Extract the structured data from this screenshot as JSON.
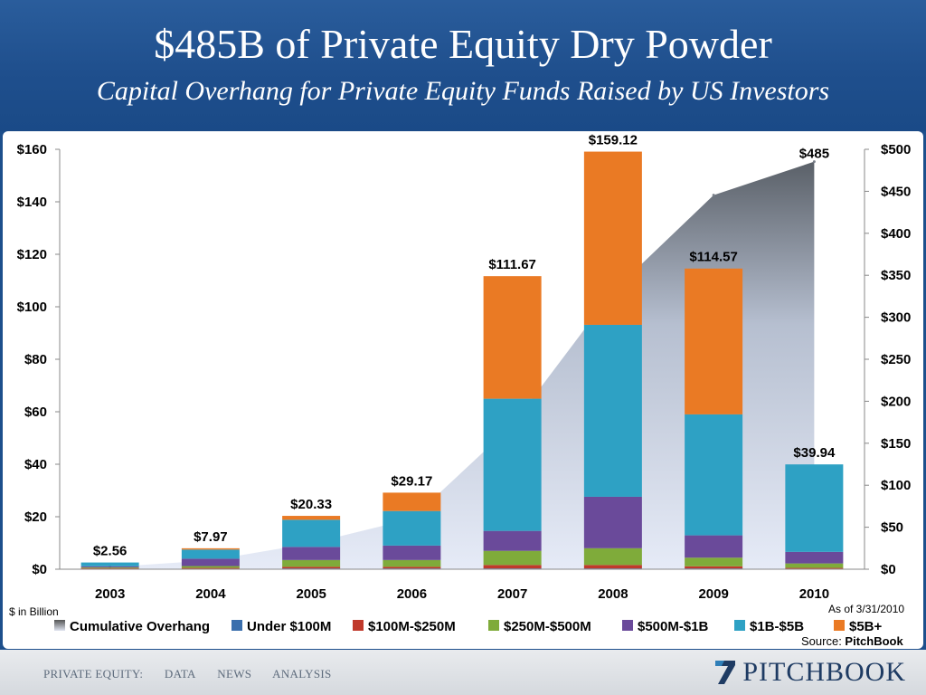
{
  "header": {
    "title": "$485B of Private Equity Dry Powder",
    "subtitle": "Capital Overhang for Private Equity Funds Raised by US Investors"
  },
  "notes": {
    "units": "$ in Billion",
    "as_of": "As of 3/31/2010",
    "source_prefix": "Source: ",
    "source_name": "PitchBook"
  },
  "footer": {
    "nav": [
      "PRIVATE EQUITY:",
      "DATA",
      "NEWS",
      "ANALYSIS"
    ],
    "brand": "PITCHBOOK",
    "brand_mark": "7"
  },
  "chart_data": {
    "type": "bar",
    "stacked": true,
    "categories": [
      "2003",
      "2004",
      "2005",
      "2006",
      "2007",
      "2008",
      "2009",
      "2010"
    ],
    "series": [
      {
        "name": "Under $100M",
        "color": "#3a6fad",
        "values": [
          0.2,
          0.2,
          0.3,
          0.3,
          0.3,
          0.3,
          0.3,
          0.2
        ]
      },
      {
        "name": "$100M-$250M",
        "color": "#c0392b",
        "values": [
          0.2,
          0.3,
          0.6,
          0.6,
          1.3,
          1.3,
          0.8,
          0.3
        ]
      },
      {
        "name": "$250M-$500M",
        "color": "#7fab3a",
        "values": [
          0.3,
          0.7,
          2.6,
          2.6,
          5.4,
          6.4,
          3.3,
          1.7
        ]
      },
      {
        "name": "$500M-$1B",
        "color": "#6a4a9a",
        "values": [
          0.4,
          2.8,
          5.0,
          5.5,
          7.6,
          19.6,
          8.5,
          4.4
        ]
      },
      {
        "name": "$1B-$5B",
        "color": "#2ea1c4",
        "values": [
          1.46,
          3.47,
          10.33,
          13.17,
          50.37,
          65.52,
          46.1,
          33.34
        ]
      },
      {
        "name": "$5B+",
        "color": "#ea7a24",
        "values": [
          0,
          0.5,
          1.5,
          7.0,
          46.7,
          66.0,
          55.57,
          0
        ]
      }
    ],
    "totals": [
      "$2.56",
      "$7.97",
      "$20.33",
      "$29.17",
      "$111.67",
      "$159.12",
      "$114.57",
      "$39.94"
    ],
    "total_values": [
      2.56,
      7.97,
      20.33,
      29.17,
      111.67,
      159.12,
      114.57,
      39.94
    ],
    "cumulative": {
      "name": "Cumulative Overhang",
      "values": [
        2.56,
        10.53,
        30.86,
        60.03,
        171.7,
        330.82,
        445.39,
        485.33
      ],
      "label": "$485"
    },
    "left_axis": {
      "ticks": [
        "$0",
        "$20",
        "$40",
        "$60",
        "$80",
        "$100",
        "$120",
        "$140",
        "$160"
      ],
      "range": [
        0,
        160
      ]
    },
    "right_axis": {
      "ticks": [
        "$0",
        "$50",
        "$100",
        "$150",
        "$200",
        "$250",
        "$300",
        "$350",
        "$400",
        "$450",
        "$500"
      ],
      "range": [
        0,
        500
      ]
    },
    "legend_position": "bottom"
  }
}
